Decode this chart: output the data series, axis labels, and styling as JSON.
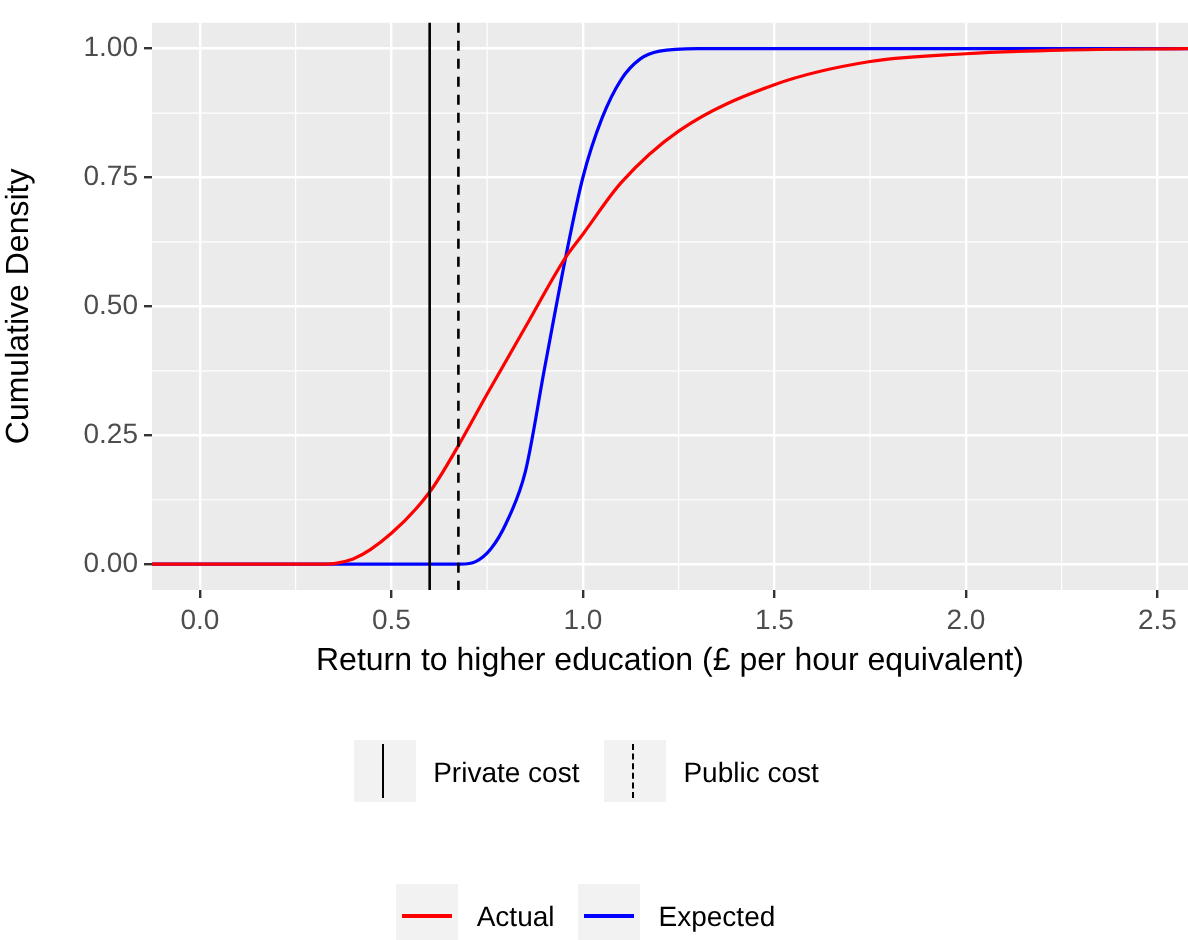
{
  "chart_data": {
    "type": "line",
    "xlabel": "Return to higher education (£ per hour equivalent)",
    "ylabel": "Cumulative Density",
    "xlim": [
      -0.125,
      2.58
    ],
    "xticks": [
      {
        "value": 0,
        "label": "0.0"
      },
      0.5,
      {
        "value": 1,
        "label": "1.0"
      },
      1.5,
      {
        "value": 2,
        "label": "2.0"
      },
      2.5
    ],
    "ylim": [
      -0.05,
      1.05
    ],
    "yticks": [
      {
        "value": 0,
        "label": "0.00"
      },
      0.25,
      {
        "value": 0.5,
        "label": "0.50"
      },
      0.75,
      {
        "value": 1,
        "label": "1.00"
      }
    ],
    "grid": true,
    "legend": "bottom",
    "marker": "none",
    "line_style": "solid",
    "series": [
      {
        "name": "Actual",
        "color": "#ff0000",
        "x": [
          -0.125,
          0.3,
          0.4,
          0.5,
          0.6,
          0.675,
          0.75,
          0.85,
          0.955,
          1.0,
          1.1,
          1.25,
          1.5,
          1.75,
          2.0,
          2.25,
          2.58
        ],
        "values": [
          0,
          0,
          0.01,
          0.06,
          0.14,
          0.23,
          0.33,
          0.46,
          0.595,
          0.64,
          0.74,
          0.84,
          0.93,
          0.975,
          0.99,
          0.997,
          1
        ]
      },
      {
        "name": "Expected",
        "color": "#0000ff",
        "x": [
          -0.125,
          0.68,
          0.72,
          0.76,
          0.8,
          0.85,
          0.9,
          0.955,
          1.0,
          1.05,
          1.1,
          1.15,
          1.2,
          1.3,
          2.58
        ],
        "values": [
          0,
          0,
          0.005,
          0.03,
          0.08,
          0.18,
          0.38,
          0.595,
          0.75,
          0.865,
          0.94,
          0.98,
          0.995,
          1,
          1
        ]
      }
    ],
    "ref_lines": [
      {
        "axis": "x",
        "value": 0.6,
        "label": "Private cost",
        "color": "#000000",
        "line_style": "solid"
      },
      {
        "axis": "x",
        "value": 0.675,
        "label": "Public cost",
        "color": "#000000",
        "line_style": "dashed"
      }
    ]
  }
}
